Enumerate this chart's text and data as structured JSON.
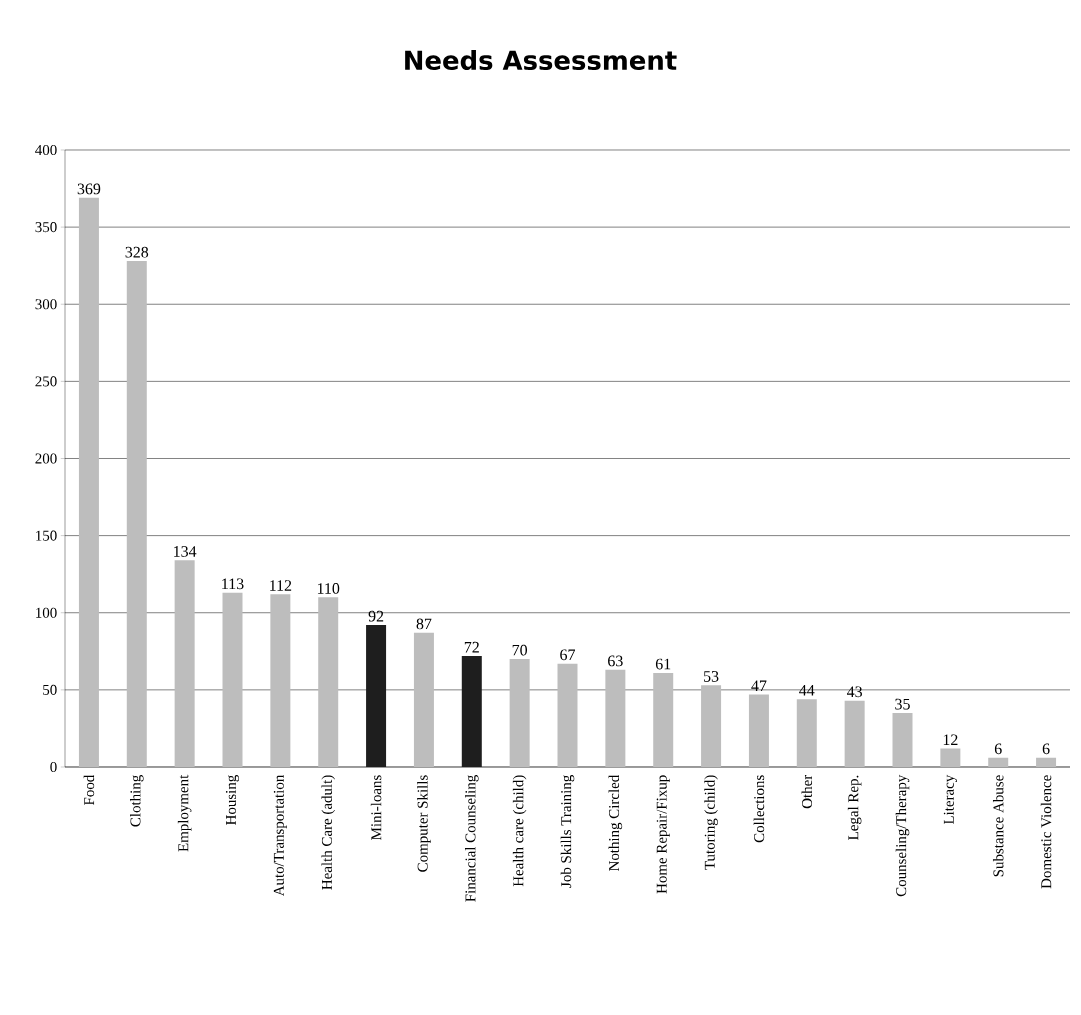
{
  "chart_data": {
    "type": "bar",
    "title": "Needs Assessment",
    "categories": [
      "Food",
      "Clothing",
      "Employment",
      "Housing",
      "Auto/Transportation",
      "Health Care (adult)",
      "Mini-loans",
      "Computer Skills",
      "Financial Counseling",
      "Health care (child)",
      "Job Skills Training",
      "Nothing Circled",
      "Home Repair/Fixup",
      "Tutoring (child)",
      "Collections",
      "Other",
      "Legal Rep.",
      "Counseling/Therapy",
      "Literacy",
      "Substance Abuse",
      "Domestic Violence"
    ],
    "values": [
      369,
      328,
      134,
      113,
      112,
      110,
      92,
      87,
      72,
      70,
      67,
      63,
      61,
      53,
      47,
      44,
      43,
      35,
      12,
      6,
      6
    ],
    "colors": [
      "#bdbdbd",
      "#bdbdbd",
      "#bdbdbd",
      "#bdbdbd",
      "#bdbdbd",
      "#bdbdbd",
      "#1e1e1e",
      "#bdbdbd",
      "#1e1e1e",
      "#bdbdbd",
      "#bdbdbd",
      "#bdbdbd",
      "#bdbdbd",
      "#bdbdbd",
      "#bdbdbd",
      "#bdbdbd",
      "#bdbdbd",
      "#bdbdbd",
      "#bdbdbd",
      "#bdbdbd",
      "#bdbdbd"
    ],
    "ylim": [
      0,
      400
    ],
    "yticks": [
      0,
      50,
      100,
      150,
      200,
      250,
      300,
      350,
      400
    ],
    "grid": "y",
    "data_labels": true
  }
}
